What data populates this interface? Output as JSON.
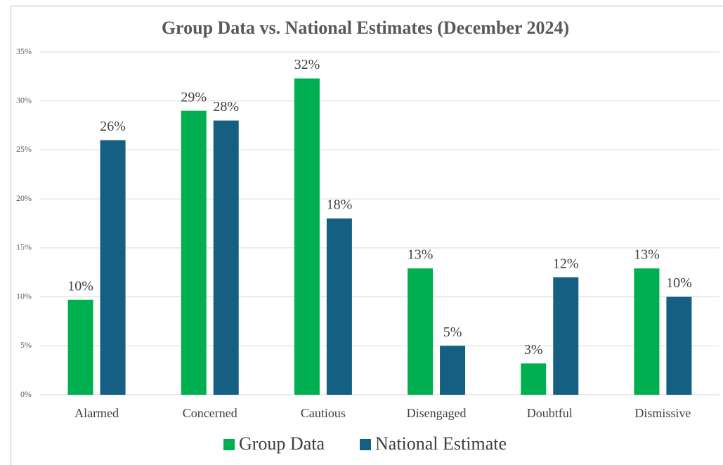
{
  "chart_data": {
    "type": "bar",
    "title": "Group Data vs. National Estimates (December 2024)",
    "categories": [
      "Alarmed",
      "Concerned",
      "Cautious",
      "Disengaged",
      "Doubtful",
      "Dismissive"
    ],
    "series": [
      {
        "name": "Group Data",
        "color": "#00b050",
        "values": [
          9.7,
          29,
          32.3,
          12.9,
          3.2,
          12.9
        ],
        "value_labels": [
          "10%",
          "29%",
          "32%",
          "13%",
          "3%",
          "13%"
        ]
      },
      {
        "name": "National Estimate",
        "color": "#156082",
        "values": [
          26,
          28,
          18,
          5,
          12,
          10
        ],
        "value_labels": [
          "26%",
          "28%",
          "18%",
          "5%",
          "12%",
          "10%"
        ]
      }
    ],
    "ylim": [
      0,
      35
    ],
    "yticks": [
      {
        "value": 0,
        "label": "0%"
      },
      {
        "value": 5,
        "label": "5%"
      },
      {
        "value": 10,
        "label": "10%"
      },
      {
        "value": 15,
        "label": "15%"
      },
      {
        "value": 20,
        "label": "20%"
      },
      {
        "value": 25,
        "label": "25%"
      },
      {
        "value": 30,
        "label": "30%"
      },
      {
        "value": 35,
        "label": "35%"
      }
    ],
    "grid": true,
    "legend": "bottom"
  }
}
